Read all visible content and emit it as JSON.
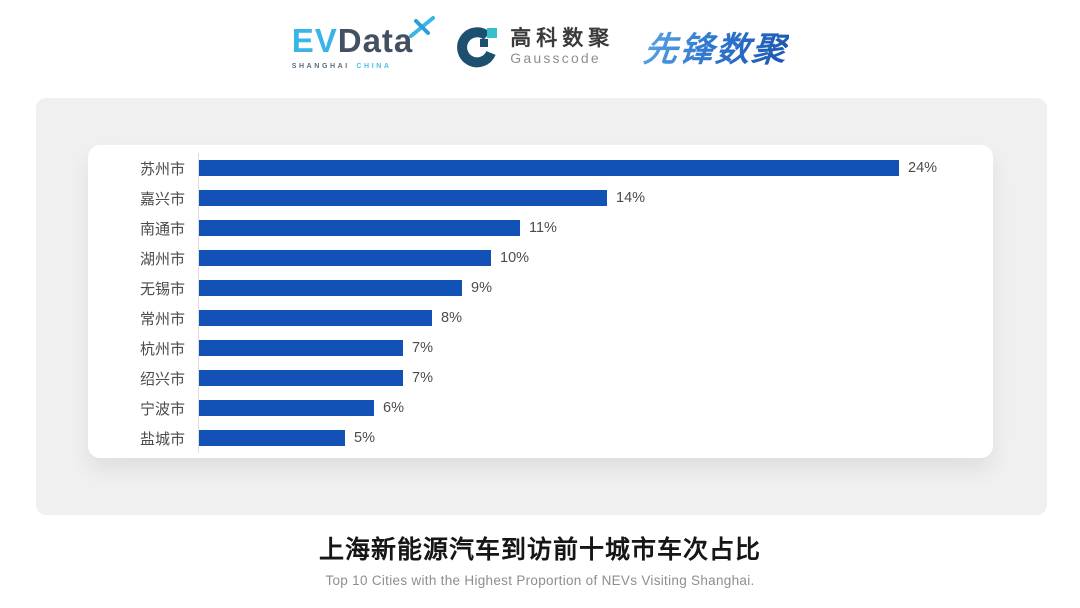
{
  "header": {
    "evdata": {
      "part1": "EV",
      "part2": "Data",
      "caption1": "SHANGHAI",
      "caption2": "CHINA"
    },
    "gausscode": {
      "cn": "高科数聚",
      "en": "Gausscode"
    },
    "xianfeng": {
      "text": "先锋数聚"
    }
  },
  "chart_data": {
    "type": "bar",
    "orientation": "horizontal",
    "categories": [
      "苏州市",
      "嘉兴市",
      "南通市",
      "湖州市",
      "无锡市",
      "常州市",
      "杭州市",
      "绍兴市",
      "宁波市",
      "盐城市"
    ],
    "values": [
      24,
      14,
      11,
      10,
      9,
      8,
      7,
      7,
      6,
      5
    ],
    "value_suffix": "%",
    "xlim": [
      0,
      24
    ],
    "grid": false,
    "legend": false,
    "bar_color": "#1252b6",
    "title": "上海新能源汽车到访前十城市车次占比",
    "subtitle": "Top 10 Cities with the Highest Proportion of  NEVs Visiting Shanghai."
  },
  "colors": {
    "panel_bg": "#f0f0f1",
    "card_bg": "#ffffff",
    "bar": "#1252b6",
    "axis_line": "#dedede",
    "label_text": "#4b4b4b",
    "title_text": "#161616",
    "subtitle_text": "#8e8e8e",
    "evdata_blue": "#3ab5e8",
    "evdata_dark": "#425062",
    "gausscode_mark": "#1d4f6e",
    "gausscode_teal": "#35c0cb",
    "xianfeng_blue": "#2b70c9"
  }
}
